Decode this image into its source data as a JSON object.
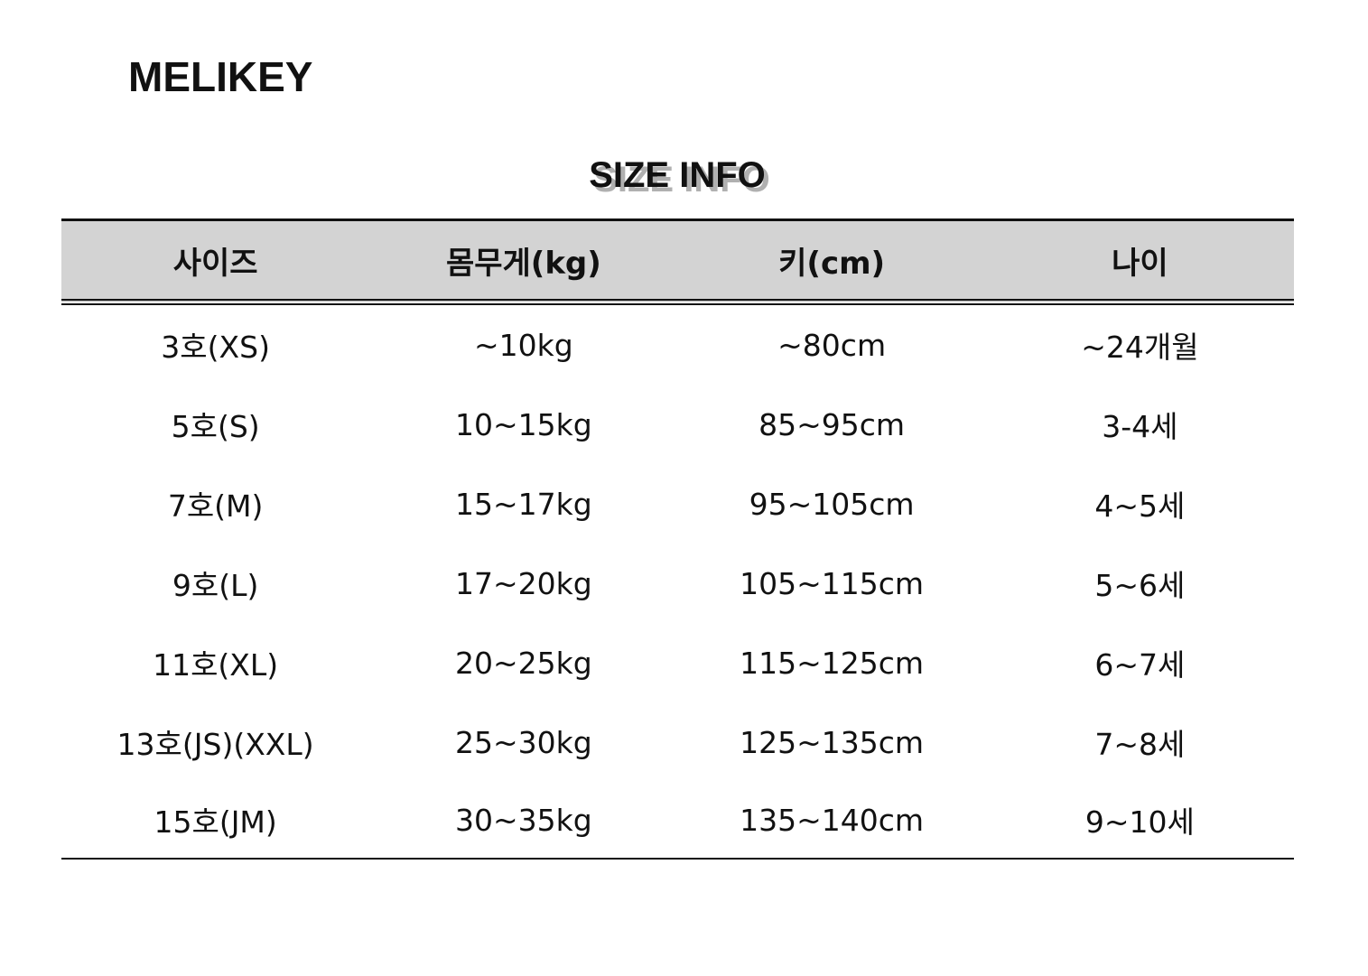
{
  "brand": "MELIKEY",
  "title": "SIZE INFO",
  "table": {
    "headers": [
      "사이즈",
      "몸무게(kg)",
      "키(cm)",
      "나이"
    ],
    "rows": [
      [
        "3호(XS)",
        "~10kg",
        "~80cm",
        "~24개월"
      ],
      [
        "5호(S)",
        "10~15kg",
        "85~95cm",
        "3-4세"
      ],
      [
        "7호(M)",
        "15~17kg",
        "95~105cm",
        "4~5세"
      ],
      [
        "9호(L)",
        "17~20kg",
        "105~115cm",
        "5~6세"
      ],
      [
        "11호(XL)",
        "20~25kg",
        "115~125cm",
        "6~7세"
      ],
      [
        "13호(JS)(XXL)",
        "25~30kg",
        "125~135cm",
        "7~8세"
      ],
      [
        "15호(JM)",
        "30~35kg",
        "135~140cm",
        "9~10세"
      ]
    ]
  },
  "colors": {
    "header_bg": "#d3d3d3",
    "title_shadow": "#b0b0b0"
  }
}
